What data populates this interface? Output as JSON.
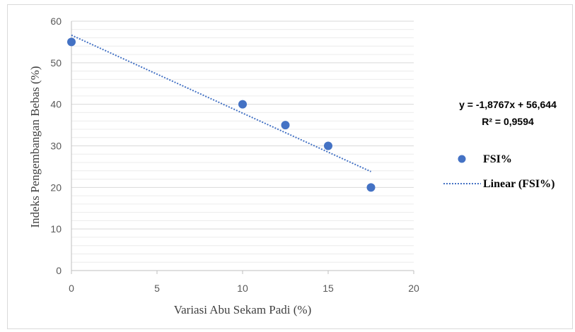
{
  "chart_data": {
    "type": "scatter",
    "xlabel": "Variasi Abu Sekam Padi (%)",
    "ylabel": "Indeks Pengembangan Bebas (%)",
    "xlim": [
      0,
      20
    ],
    "ylim": [
      0,
      60
    ],
    "xticks": [
      "0",
      "5",
      "10",
      "15",
      "20"
    ],
    "yticks": [
      "0",
      "10",
      "20",
      "30",
      "40",
      "50",
      "60"
    ],
    "grid": true,
    "legend_position": "right",
    "series": [
      {
        "name": "FSI%",
        "color": "#4472C4",
        "points": [
          {
            "x": 0,
            "y": 55
          },
          {
            "x": 10,
            "y": 40
          },
          {
            "x": 12.5,
            "y": 35
          },
          {
            "x": 15,
            "y": 30
          },
          {
            "x": 17.5,
            "y": 20
          }
        ]
      }
    ],
    "trendline": {
      "name": "Linear (FSI%)",
      "slope": -1.8767,
      "intercept": 56.644,
      "x_range": [
        0,
        17.5
      ],
      "style": "dotted",
      "color": "#4472C4"
    },
    "annotations": {
      "equation": "y = -1,8767x + 56,644",
      "r_squared": "R² = 0,9594"
    }
  }
}
